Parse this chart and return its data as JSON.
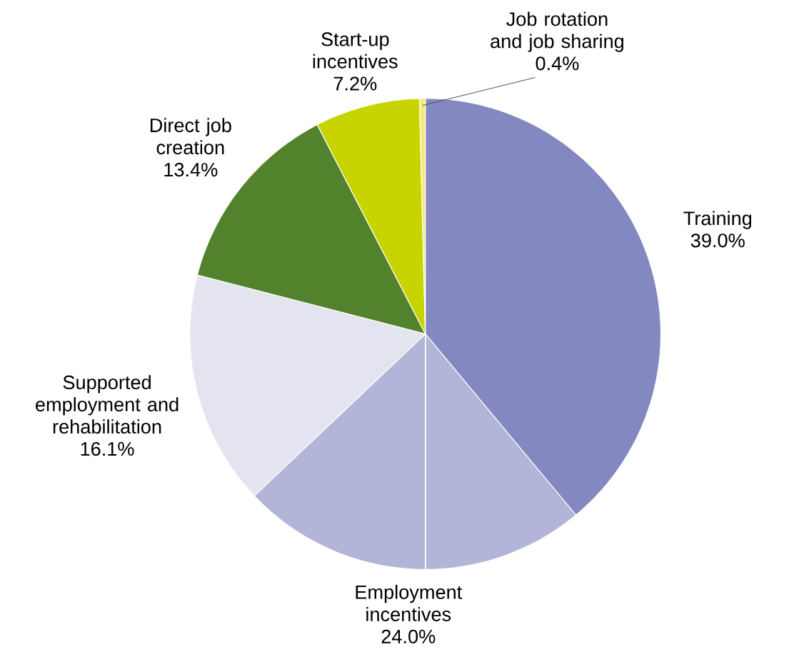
{
  "chart_data": {
    "type": "pie",
    "categories": [
      "Training",
      "Employment incentives",
      "Supported employment and rehabilitation",
      "Direct job creation",
      "Start-up incentives",
      "Job rotation and job sharing"
    ],
    "values": [
      39.0,
      24.0,
      16.1,
      13.4,
      7.2,
      0.4
    ],
    "value_labels": [
      "39.0%",
      "24.0%",
      "16.1%",
      "13.4%",
      "7.2%",
      "0.4%"
    ],
    "colors": [
      "#8389c0",
      "#b3b5d8",
      "#e4e4f1",
      "#52832c",
      "#c8d400",
      "#f3e97c"
    ]
  }
}
